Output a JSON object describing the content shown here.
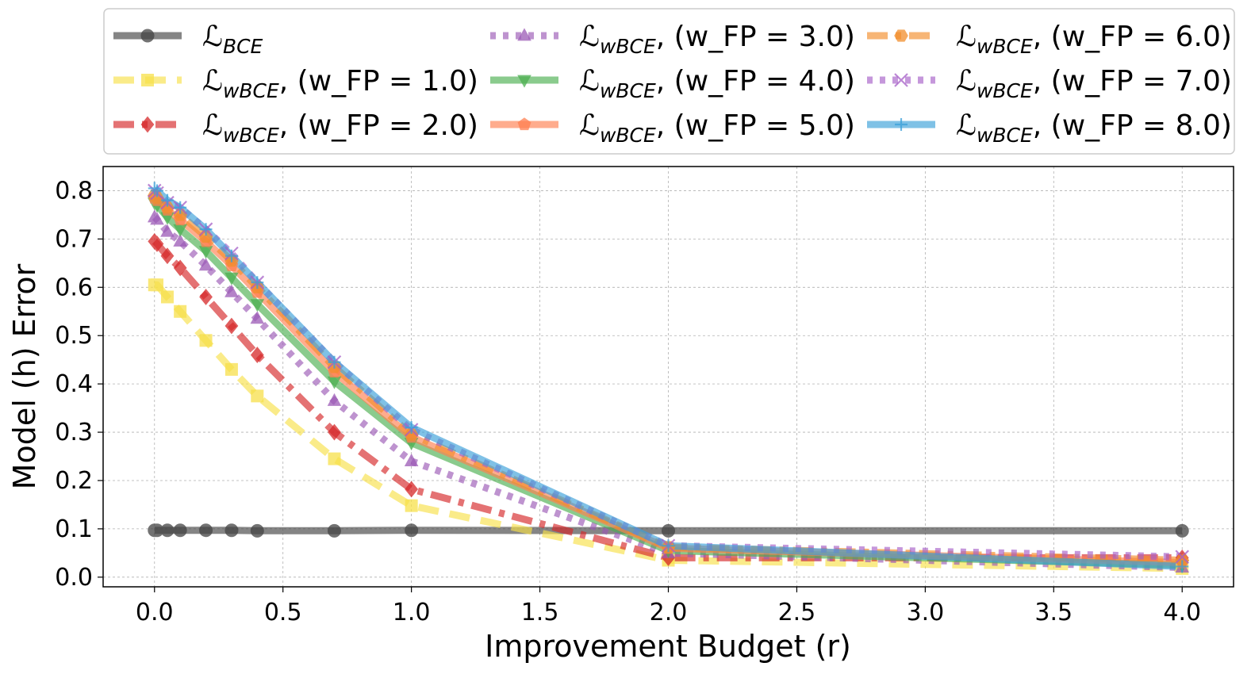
{
  "chart_data": {
    "type": "line",
    "title": "",
    "xlabel": "Improvement Budget (r)",
    "ylabel": "Model (h) Error",
    "xlim": [
      -0.2,
      4.2
    ],
    "ylim": [
      -0.02,
      0.85
    ],
    "xticks": [
      0.0,
      0.5,
      1.0,
      1.5,
      2.0,
      2.5,
      3.0,
      3.5,
      4.0
    ],
    "xtick_labels": [
      "0.0",
      "0.5",
      "1.0",
      "1.5",
      "2.0",
      "2.5",
      "3.0",
      "3.5",
      "4.0"
    ],
    "yticks": [
      0.0,
      0.1,
      0.2,
      0.3,
      0.4,
      0.5,
      0.6,
      0.7,
      0.8
    ],
    "ytick_labels": [
      "0.0",
      "0.1",
      "0.2",
      "0.3",
      "0.4",
      "0.5",
      "0.6",
      "0.7",
      "0.8"
    ],
    "grid": true,
    "legend_position": "top, outside, 3 columns",
    "x": [
      0.0,
      0.01,
      0.05,
      0.1,
      0.2,
      0.3,
      0.4,
      0.7,
      1.0,
      2.0,
      4.0
    ],
    "series": [
      {
        "name": "L_BCE",
        "label_main": "ℒ",
        "label_sub": "BCE",
        "label_tail": "",
        "color": "#444444",
        "dash": "solid",
        "marker": "circle",
        "values": [
          0.097,
          0.097,
          0.097,
          0.097,
          0.097,
          0.097,
          0.096,
          0.096,
          0.097,
          0.096,
          0.096
        ]
      },
      {
        "name": "L_wBCE (w_FP = 1.0)",
        "label_main": "ℒ",
        "label_sub": "wBCE",
        "label_tail": ", (w_FP = 1.0)",
        "color": "#f7e04a",
        "dash": "dashed",
        "marker": "square",
        "values": [
          0.605,
          0.605,
          0.58,
          0.55,
          0.49,
          0.43,
          0.375,
          0.245,
          0.148,
          0.035,
          0.018
        ]
      },
      {
        "name": "L_wBCE (w_FP = 2.0)",
        "label_main": "ℒ",
        "label_sub": "wBCE",
        "label_tail": ", (w_FP = 2.0)",
        "color": "#d62728",
        "dash": "dashdot",
        "marker": "diamond",
        "values": [
          0.695,
          0.69,
          0.665,
          0.64,
          0.58,
          0.52,
          0.46,
          0.3,
          0.182,
          0.04,
          0.04
        ]
      },
      {
        "name": "L_wBCE (w_FP = 3.0)",
        "label_main": "ℒ",
        "label_sub": "wBCE",
        "label_tail": ", (w_FP = 3.0)",
        "color": "#9b59b6",
        "dash": "dotted",
        "marker": "triangle-up",
        "values": [
          0.745,
          0.74,
          0.715,
          0.695,
          0.645,
          0.59,
          0.535,
          0.365,
          0.24,
          0.05,
          0.02
        ]
      },
      {
        "name": "L_wBCE (w_FP = 4.0)",
        "label_main": "ℒ",
        "label_sub": "wBCE",
        "label_tail": ", (w_FP = 4.0)",
        "color": "#4caf50",
        "dash": "solid",
        "marker": "triangle-down",
        "values": [
          0.775,
          0.77,
          0.745,
          0.72,
          0.675,
          0.62,
          0.565,
          0.405,
          0.278,
          0.055,
          0.025
        ]
      },
      {
        "name": "L_wBCE (w_FP = 5.0)",
        "label_main": "ℒ",
        "label_sub": "wBCE",
        "label_tail": ", (w_FP = 5.0)",
        "color": "#ff7f50",
        "dash": "solid",
        "marker": "pentagon",
        "values": [
          0.785,
          0.78,
          0.76,
          0.74,
          0.695,
          0.645,
          0.59,
          0.425,
          0.29,
          0.06,
          0.03
        ]
      },
      {
        "name": "L_wBCE (w_FP = 6.0)",
        "label_main": "ℒ",
        "label_sub": "wBCE",
        "label_tail": ", (w_FP = 6.0)",
        "color": "#f28e2b",
        "dash": "dashdot",
        "marker": "hexagon",
        "values": [
          0.79,
          0.785,
          0.765,
          0.75,
          0.705,
          0.655,
          0.6,
          0.435,
          0.295,
          0.062,
          0.035
        ]
      },
      {
        "name": "L_wBCE (w_FP = 7.0)",
        "label_main": "ℒ",
        "label_sub": "wBCE",
        "label_tail": ", (w_FP = 7.0)",
        "color": "#a65fc7",
        "dash": "dotted",
        "marker": "x",
        "values": [
          0.8,
          0.795,
          0.775,
          0.765,
          0.72,
          0.67,
          0.61,
          0.445,
          0.305,
          0.065,
          0.042
        ]
      },
      {
        "name": "L_wBCE (w_FP = 8.0)",
        "label_main": "ℒ",
        "label_sub": "wBCE",
        "label_tail": ", (w_FP = 8.0)",
        "color": "#3a9fd8",
        "dash": "solid",
        "marker": "plus",
        "values": [
          0.805,
          0.8,
          0.78,
          0.765,
          0.72,
          0.665,
          0.61,
          0.445,
          0.31,
          0.065,
          0.022
        ]
      }
    ]
  }
}
